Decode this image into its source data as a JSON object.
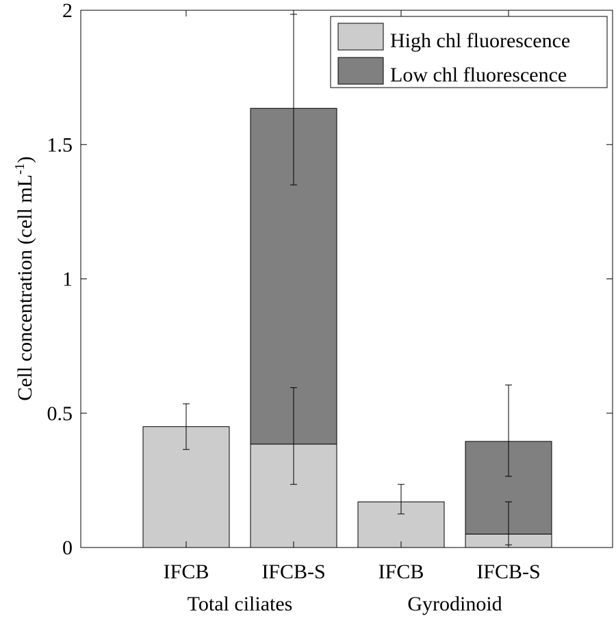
{
  "chart_data": {
    "type": "bar",
    "stacked": true,
    "categories": [
      "IFCB",
      "IFCB-S",
      "IFCB",
      "IFCB-S"
    ],
    "groups": [
      {
        "label": "Total ciliates",
        "categories": [
          "IFCB",
          "IFCB-S"
        ]
      },
      {
        "label": "Gyrodinoid",
        "categories": [
          "IFCB",
          "IFCB-S"
        ]
      }
    ],
    "series": [
      {
        "name": "High chl fluorescence",
        "color": "#cccccc",
        "values": [
          0.45,
          0.385,
          0.17,
          0.05
        ],
        "errors": [
          [
            0.365,
            0.535
          ],
          [
            0.235,
            0.595
          ],
          [
            0.125,
            0.235
          ],
          [
            0.01,
            0.17
          ]
        ]
      },
      {
        "name": "Low chl fluorescence",
        "color": "#808080",
        "values": [
          0,
          1.25,
          0,
          0.345
        ],
        "errors": [
          null,
          [
            1.35,
            1.985
          ],
          null,
          [
            0.265,
            0.605
          ]
        ]
      }
    ],
    "ylabel": "Cell concentration (cell mL",
    "ylabel_superscript": "-1",
    "ylabel_suffix": ")",
    "ylim": [
      0,
      2
    ],
    "yticks": [
      0,
      0.5,
      1,
      1.5,
      2
    ],
    "ytick_labels": [
      "0",
      "0.5",
      "1",
      "1.5",
      "2"
    ],
    "legend_position": "top-right",
    "grid": false
  }
}
